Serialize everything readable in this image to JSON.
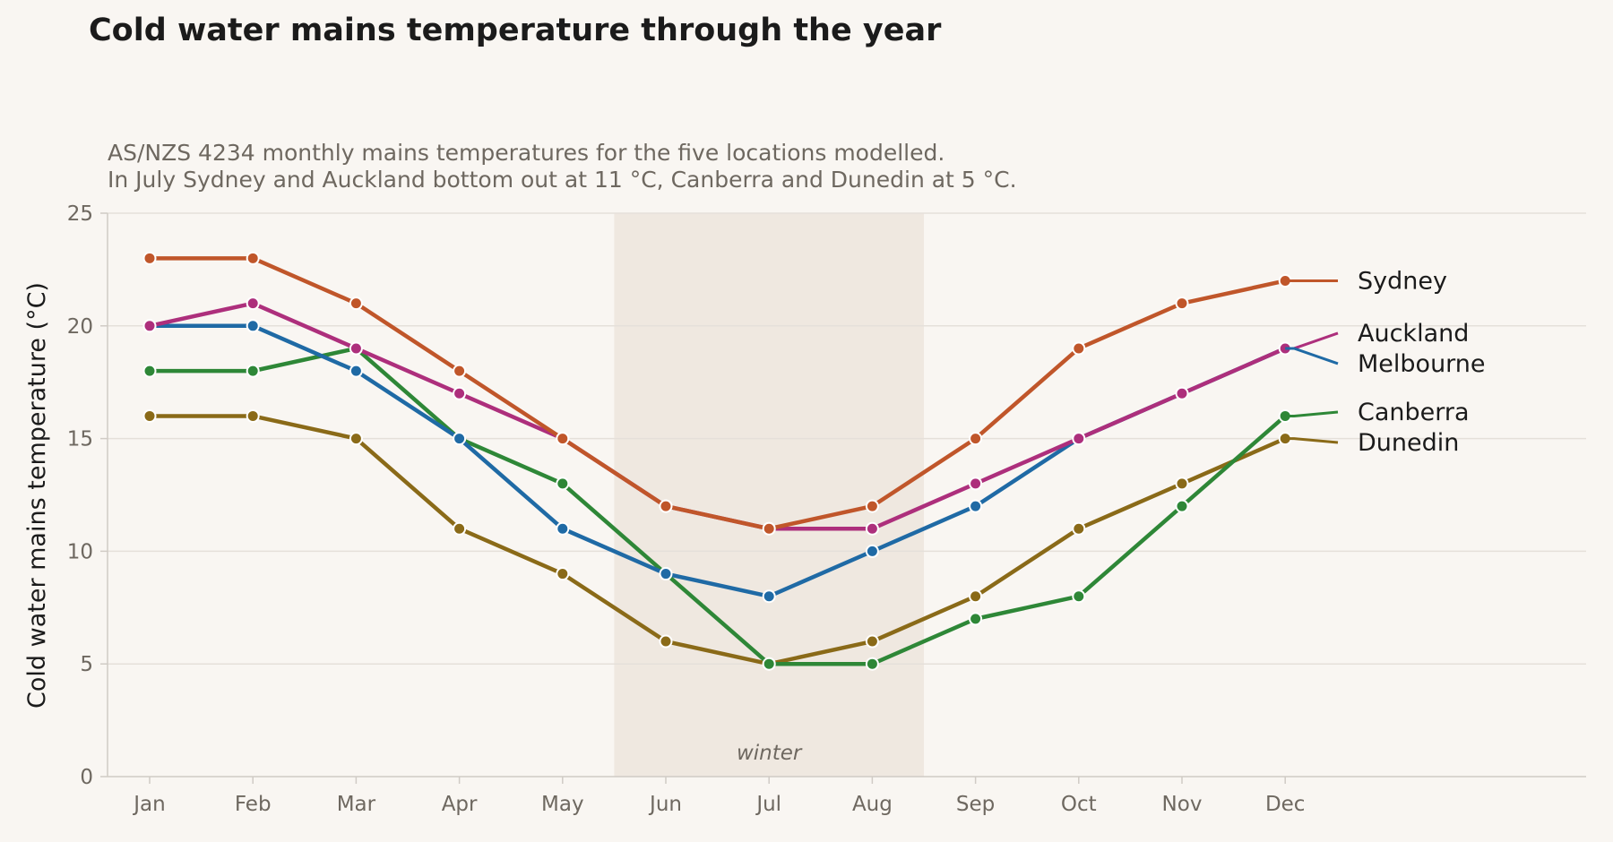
{
  "chart_data": {
    "type": "line",
    "title": "Cold water mains temperature through the year",
    "subtitle": [
      "AS/NZS 4234 monthly mains temperatures for the five locations modelled.",
      "In July Sydney and Auckland bottom out at 11 °C, Canberra and Dunedin at 5 °C."
    ],
    "xlabel": "",
    "ylabel": "Cold water mains temperature (°C)",
    "categories": [
      "Jan",
      "Feb",
      "Mar",
      "Apr",
      "May",
      "Jun",
      "Jul",
      "Aug",
      "Sep",
      "Oct",
      "Nov",
      "Dec"
    ],
    "ylim": [
      0,
      25
    ],
    "yticks": [
      0,
      5,
      10,
      15,
      20,
      25
    ],
    "grid": "horizontal",
    "legend": "right, direct labels at line ends",
    "shaded_band": {
      "label": "winter",
      "from": "Jun",
      "to": "Aug",
      "color": "#efe8e0"
    },
    "series": [
      {
        "name": "Sydney",
        "color": "#c0562a",
        "values": [
          23,
          23,
          21,
          18,
          15,
          12,
          11,
          12,
          15,
          19,
          21,
          22
        ]
      },
      {
        "name": "Auckland",
        "color": "#ad2f7c",
        "values": [
          20,
          21,
          19,
          17,
          15,
          12,
          11,
          11,
          13,
          15,
          17,
          19
        ]
      },
      {
        "name": "Melbourne",
        "color": "#1f6aa5",
        "values": [
          20,
          20,
          18,
          15,
          11,
          9,
          8,
          10,
          12,
          15,
          17,
          19
        ]
      },
      {
        "name": "Canberra",
        "color": "#2e8737",
        "values": [
          18,
          18,
          19,
          15,
          13,
          9,
          5,
          5,
          7,
          8,
          12,
          16
        ]
      },
      {
        "name": "Dunedin",
        "color": "#8a6a18",
        "values": [
          16,
          16,
          15,
          11,
          9,
          6,
          5,
          6,
          8,
          11,
          13,
          15
        ]
      }
    ]
  }
}
